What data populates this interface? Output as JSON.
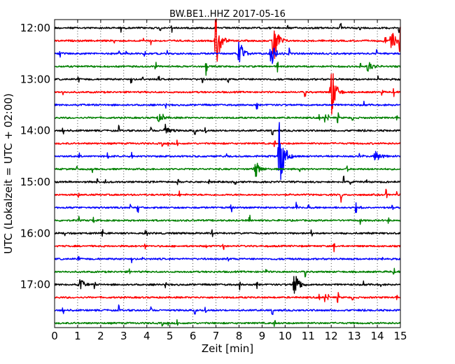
{
  "chart_data": {
    "type": "line",
    "title": "BW.BE1..HHZ 2017-05-16",
    "xlabel": "Zeit  [min]",
    "ylabel": "UTC (Lokalzeit = UTC + 02:00)",
    "xlim": [
      0,
      15
    ],
    "x_ticks": [
      0,
      1,
      2,
      3,
      4,
      5,
      6,
      7,
      8,
      9,
      10,
      11,
      12,
      13,
      14,
      15
    ],
    "x_tick_labels": [
      "0",
      "1",
      "2",
      "3",
      "4",
      "5",
      "6",
      "7",
      "8",
      "9",
      "10",
      "11",
      "12",
      "13",
      "14",
      "15"
    ],
    "y_tick_labels": [
      "12:00",
      "13:00",
      "14:00",
      "15:00",
      "16:00",
      "17:00"
    ],
    "y_tick_rows": [
      0,
      4,
      8,
      12,
      16,
      20
    ],
    "row_count": 24,
    "row_interval_minutes": 15,
    "colors": [
      "#000000",
      "#ff0000",
      "#0000ff",
      "#008000"
    ],
    "grid": "vertical dotted",
    "events": [
      {
        "row": 1,
        "minute": 7.0,
        "amp": 2.6
      },
      {
        "row": 1,
        "minute": 9.5,
        "amp": 2.4
      },
      {
        "row": 1,
        "minute": 15.0,
        "amp": 3.0
      },
      {
        "row": 1,
        "minute": 14.6,
        "amp": 0.9
      },
      {
        "row": 2,
        "minute": 8.0,
        "amp": 1.3
      },
      {
        "row": 2,
        "minute": 9.4,
        "amp": 1.0
      },
      {
        "row": 5,
        "minute": 12.0,
        "amp": 2.5
      },
      {
        "row": 3,
        "minute": 13.6,
        "amp": 0.5
      },
      {
        "row": 8,
        "minute": 4.8,
        "amp": 0.6
      },
      {
        "row": 7,
        "minute": 4.5,
        "amp": 0.3
      },
      {
        "row": 10,
        "minute": 9.75,
        "amp": 4.0
      },
      {
        "row": 10,
        "minute": 13.9,
        "amp": 0.6
      },
      {
        "row": 11,
        "minute": 8.7,
        "amp": 0.8
      },
      {
        "row": 20,
        "minute": 1.1,
        "amp": 0.5
      },
      {
        "row": 20,
        "minute": 10.4,
        "amp": 1.3
      }
    ]
  }
}
